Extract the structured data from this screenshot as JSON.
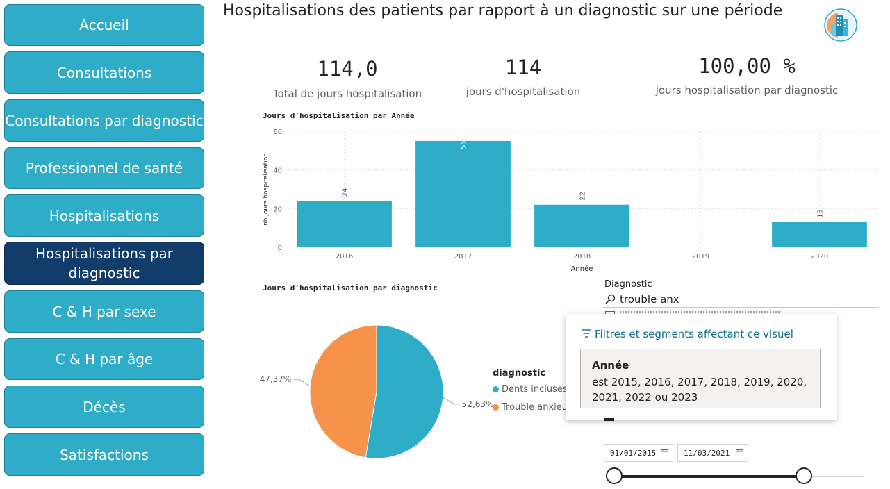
{
  "nav": [
    {
      "label": "Accueil"
    },
    {
      "label": "Consultations"
    },
    {
      "label": "Consultations par diagnostic"
    },
    {
      "label": "Professionnel de santé"
    },
    {
      "label": "Hospitalisations"
    },
    {
      "label": "Hospitalisations par diagnostic"
    },
    {
      "label": "C & H par sexe"
    },
    {
      "label": "C & H par âge"
    },
    {
      "label": "Décès"
    },
    {
      "label": "Satisfactions"
    }
  ],
  "title": "Hospitalisations des patients par rapport à un diagnostic sur une période",
  "kpis": [
    {
      "value": "114,0",
      "label": "Total de jours hospitalisation"
    },
    {
      "value": "114",
      "label": "jours d'hospitalisation"
    },
    {
      "value": "100,00 %",
      "label": "jours hospitalisation par diagnostic"
    }
  ],
  "colors": {
    "teal": "#2eacc8",
    "navy": "#123c6a",
    "orange": "#f7924a"
  },
  "chart_data": [
    {
      "type": "bar",
      "title": "Jours d'hospitalisation par Année",
      "xlabel": "Année",
      "ylabel": "nb jours hospitalisation",
      "categories": [
        "2016",
        "2017",
        "2018",
        "2019",
        "2020"
      ],
      "values": [
        24,
        55,
        22,
        null,
        13
      ],
      "yticks": [
        "0",
        "20",
        "40",
        "60"
      ],
      "ylim": [
        0,
        60
      ],
      "grid": true
    },
    {
      "type": "pie",
      "title": "Jours d'hospitalisation par diagnostic",
      "legend_title": "diagnostic",
      "slices": [
        {
          "name": "Dents incluses",
          "value": 52.63,
          "label": "52,63%",
          "color": "#2eacc8"
        },
        {
          "name": "Trouble anxieu",
          "value": 47.37,
          "label": "47,37%",
          "color": "#f7924a"
        }
      ]
    }
  ],
  "slicer": {
    "title": "Diagnostic",
    "search_value": "trouble anx"
  },
  "popup": {
    "header": "Filtres et segments affectant ce visuel",
    "filter_name": "Année",
    "filter_line1": "est 2015, 2016, 2017, 2018, 2019, 2020,",
    "filter_line2": "2021, 2022 ou 2023"
  },
  "date_range": {
    "start": "01/01/2015",
    "end": "11/03/2021",
    "calendar_icon": "calendar-icon"
  }
}
